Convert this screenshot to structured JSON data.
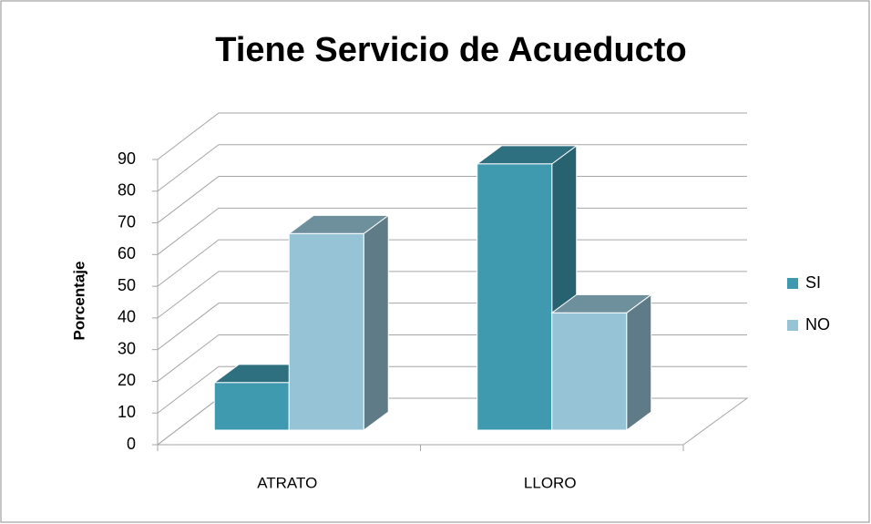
{
  "chart_data": {
    "type": "bar",
    "title": "Tiene Servicio de Acueducto",
    "y_label": "Porcentaje",
    "categories": [
      "ATRATO",
      "LLORO"
    ],
    "series": [
      {
        "name": "SI",
        "color": "#3f9ab0",
        "values": [
          15,
          84
        ]
      },
      {
        "name": "NO",
        "color": "#96c4d6",
        "values": [
          62,
          37
        ]
      }
    ],
    "ylim": [
      0,
      90
    ],
    "yticks": [
      0,
      10,
      20,
      30,
      40,
      50,
      60,
      70,
      80,
      90
    ],
    "grid": true,
    "legend": "right"
  }
}
